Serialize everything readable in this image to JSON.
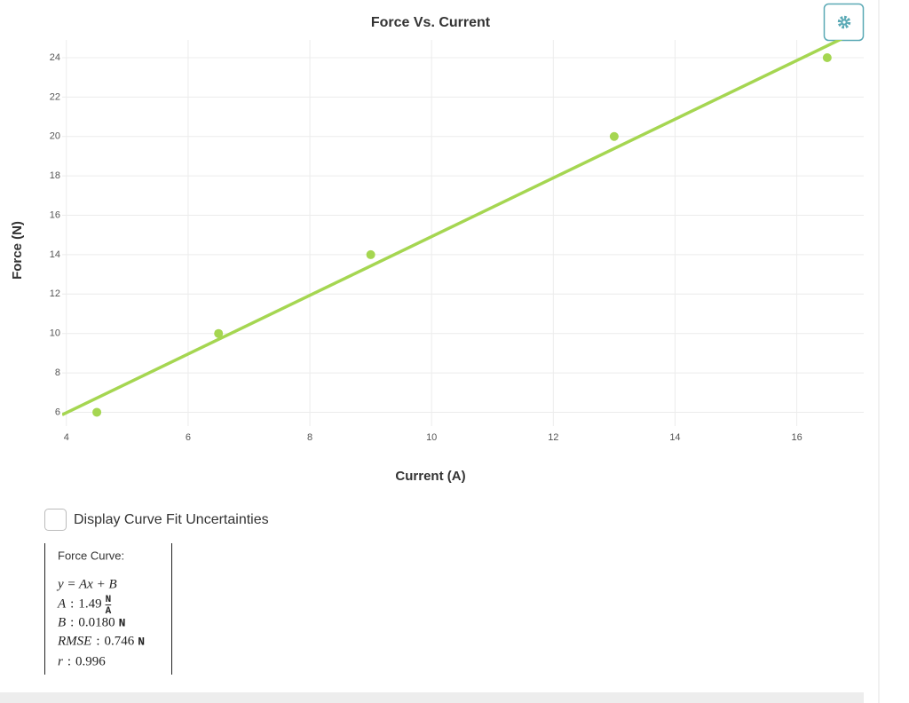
{
  "chart_data": {
    "type": "scatter",
    "title": "Force Vs. Current",
    "x_label": "Current (A)",
    "y_label": "Force (N)",
    "x": [
      4.5,
      6.5,
      9,
      13,
      16.5
    ],
    "series": [
      {
        "color": "#a5d651",
        "values": [
          6,
          10,
          14,
          20,
          24
        ]
      }
    ],
    "xlim": [
      3.93,
      17.1
    ],
    "ylim": [
      5.3,
      24.9
    ],
    "xticks": [
      4,
      6,
      8,
      10,
      12,
      14,
      16
    ],
    "yticks": [
      6,
      8,
      10,
      12,
      14,
      16,
      18,
      20,
      22,
      24
    ],
    "grid": true
  },
  "controls": {
    "checkbox_label": "Display Curve Fit Uncertainties"
  },
  "fit": {
    "title": "Force Curve:",
    "equation": "y = Ax + B",
    "separator": ":",
    "rows": [
      {
        "name": "A",
        "value": 1.49,
        "unit_num": "N",
        "unit_den": "A"
      },
      {
        "name": "B",
        "value": {
          "value": 0.018,
          "label": "0.0180"
        },
        "unit": "N"
      },
      {
        "name": "RMSE",
        "value": 0.746,
        "unit": "N"
      },
      {
        "name": "r",
        "value": 0.996
      }
    ]
  }
}
